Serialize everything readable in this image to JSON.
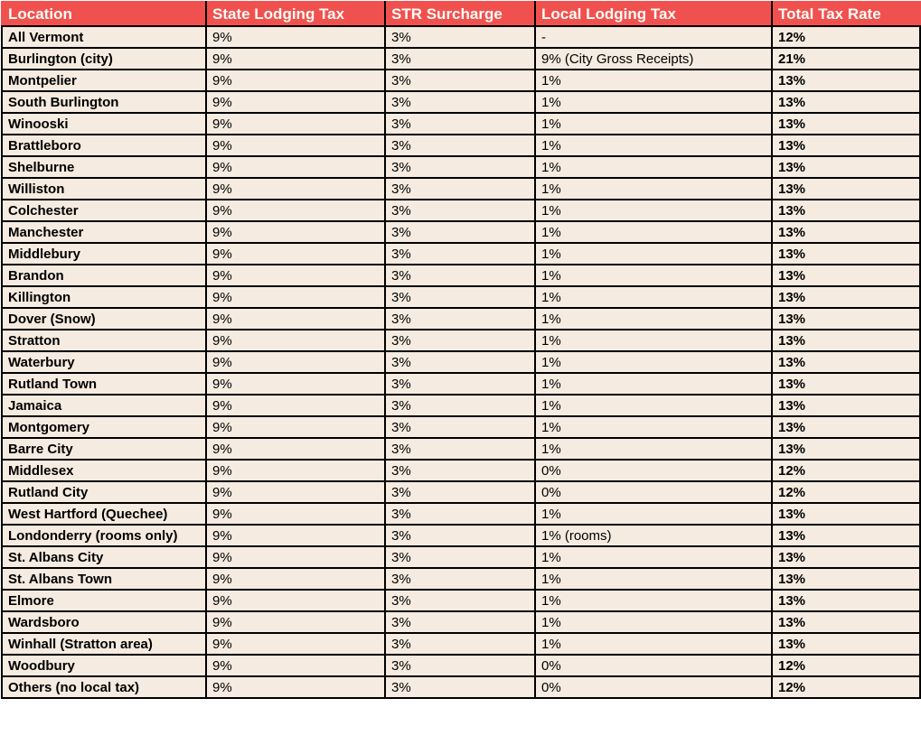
{
  "colors": {
    "header_bg": "#F0514F",
    "header_text": "#FFFCF5",
    "row_bg": "#F5EBE0",
    "grid_border": "#000000",
    "body_text": "#000000"
  },
  "chart_data": {
    "type": "table",
    "columns": [
      "Location",
      "State Lodging Tax",
      "STR Surcharge",
      "Local Lodging Tax",
      "Total Tax Rate"
    ],
    "rows": [
      [
        "All Vermont",
        "9%",
        "3%",
        "-",
        "12%"
      ],
      [
        "Burlington (city)",
        "9%",
        "3%",
        "9% (City Gross Receipts)",
        "21%"
      ],
      [
        "Montpelier",
        "9%",
        "3%",
        "1%",
        "13%"
      ],
      [
        "South Burlington",
        "9%",
        "3%",
        "1%",
        "13%"
      ],
      [
        "Winooski",
        "9%",
        "3%",
        "1%",
        "13%"
      ],
      [
        "Brattleboro",
        "9%",
        "3%",
        "1%",
        "13%"
      ],
      [
        "Shelburne",
        "9%",
        "3%",
        "1%",
        "13%"
      ],
      [
        "Williston",
        "9%",
        "3%",
        "1%",
        "13%"
      ],
      [
        "Colchester",
        "9%",
        "3%",
        "1%",
        "13%"
      ],
      [
        "Manchester",
        "9%",
        "3%",
        "1%",
        "13%"
      ],
      [
        "Middlebury",
        "9%",
        "3%",
        "1%",
        "13%"
      ],
      [
        "Brandon",
        "9%",
        "3%",
        "1%",
        "13%"
      ],
      [
        "Killington",
        "9%",
        "3%",
        "1%",
        "13%"
      ],
      [
        "Dover (Snow)",
        "9%",
        "3%",
        "1%",
        "13%"
      ],
      [
        "Stratton",
        "9%",
        "3%",
        "1%",
        "13%"
      ],
      [
        "Waterbury",
        "9%",
        "3%",
        "1%",
        "13%"
      ],
      [
        "Rutland Town",
        "9%",
        "3%",
        "1%",
        "13%"
      ],
      [
        "Jamaica",
        "9%",
        "3%",
        "1%",
        "13%"
      ],
      [
        "Montgomery",
        "9%",
        "3%",
        "1%",
        "13%"
      ],
      [
        "Barre City",
        "9%",
        "3%",
        "1%",
        "13%"
      ],
      [
        "Middlesex",
        "9%",
        "3%",
        "0%",
        "12%"
      ],
      [
        "Rutland City",
        "9%",
        "3%",
        "0%",
        "12%"
      ],
      [
        "West Hartford (Quechee)",
        "9%",
        "3%",
        "1%",
        "13%"
      ],
      [
        "Londonderry (rooms only)",
        "9%",
        "3%",
        "1% (rooms)",
        "13%"
      ],
      [
        "St. Albans City",
        "9%",
        "3%",
        "1%",
        "13%"
      ],
      [
        "St. Albans Town",
        "9%",
        "3%",
        "1%",
        "13%"
      ],
      [
        "Elmore",
        "9%",
        "3%",
        "1%",
        "13%"
      ],
      [
        "Wardsboro",
        "9%",
        "3%",
        "1%",
        "13%"
      ],
      [
        "Winhall (Stratton area)",
        "9%",
        "3%",
        "1%",
        "13%"
      ],
      [
        "Woodbury",
        "9%",
        "3%",
        "0%",
        "12%"
      ],
      [
        "Others (no local tax)",
        "9%",
        "3%",
        "0%",
        "12%"
      ]
    ]
  }
}
